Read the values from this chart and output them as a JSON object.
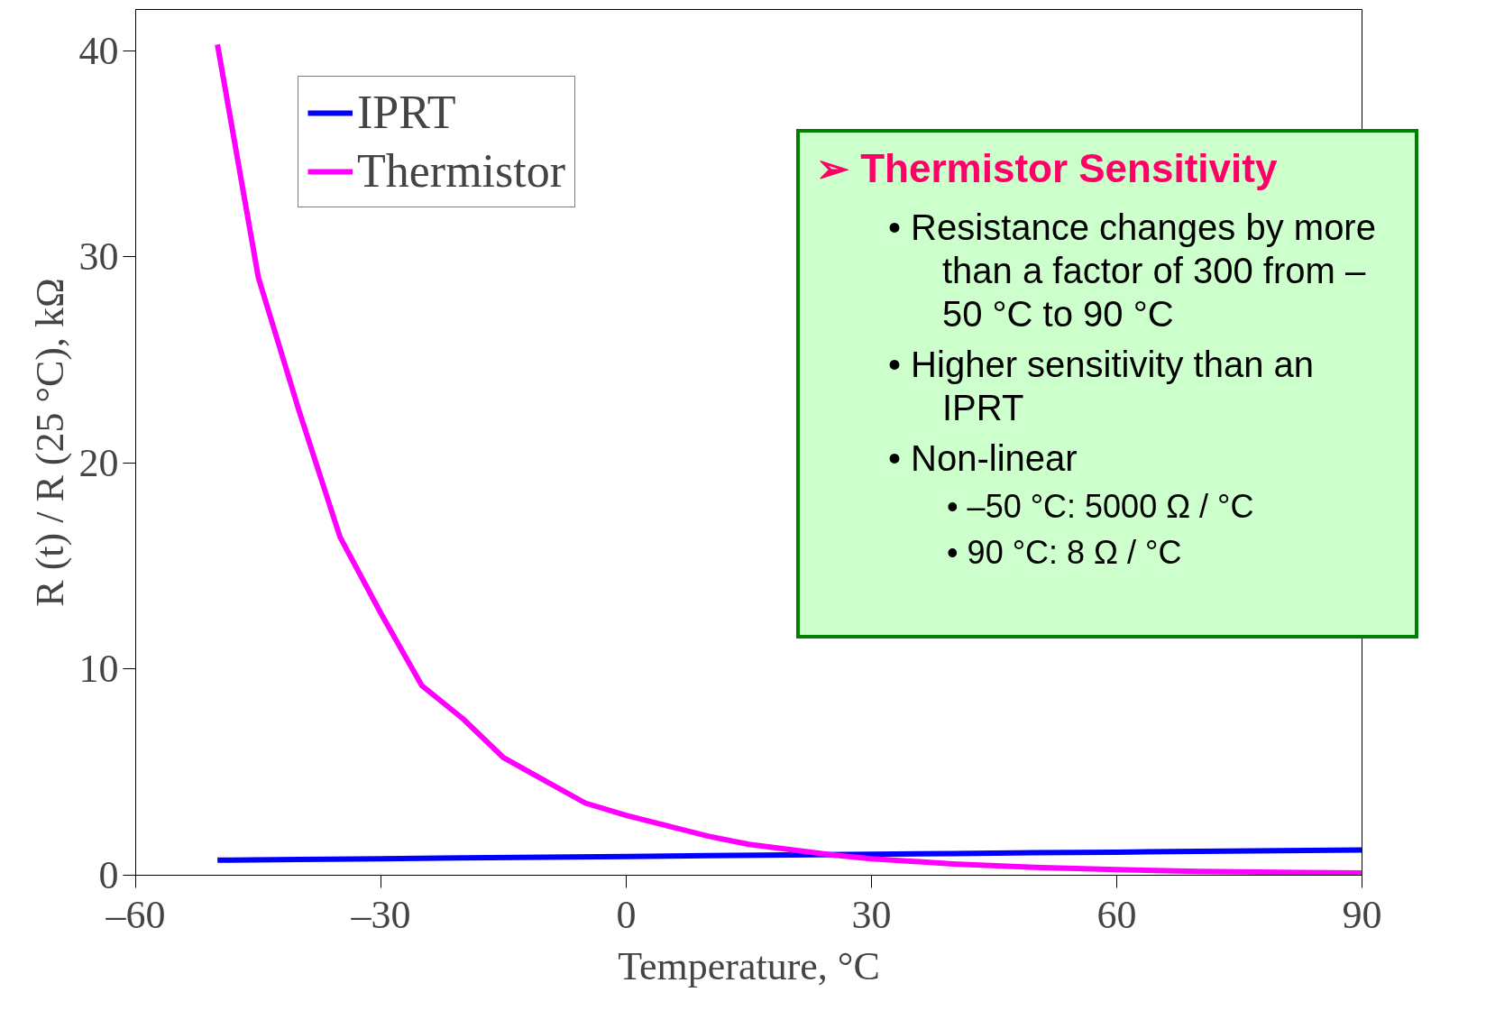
{
  "chart_data": {
    "type": "line",
    "xlabel": "Temperature, °C",
    "ylabel": "R (t) / R (25 °C), kΩ",
    "xlim": [
      -60,
      90
    ],
    "xticks": [
      {
        "value": -60,
        "label": "–60"
      },
      {
        "value": -30,
        "label": "–30"
      },
      0,
      30,
      60,
      90
    ],
    "ylim": [
      0,
      42
    ],
    "yticks": [
      0,
      10,
      20,
      30,
      40
    ],
    "grid": false,
    "legend": "top left",
    "line_style": "solid",
    "marker": "none",
    "series": [
      {
        "name": "IPRT",
        "color": "#0000ff",
        "x": [
          -50,
          -40,
          -30,
          -20,
          -10,
          0,
          10,
          20,
          30,
          40,
          50,
          60,
          70,
          80,
          90
        ],
        "values": [
          0.73,
          0.77,
          0.8,
          0.84,
          0.87,
          0.91,
          0.95,
          0.98,
          1.02,
          1.05,
          1.09,
          1.12,
          1.16,
          1.19,
          1.23
        ]
      },
      {
        "name": "Thermistor",
        "color": "#ff00ff",
        "x": [
          -50,
          -45,
          -40,
          -35,
          -30,
          -25,
          -20,
          -15,
          -10,
          -5,
          0,
          5,
          10,
          15,
          20,
          25,
          30,
          40,
          50,
          60,
          70,
          80,
          90
        ],
        "values": [
          40.3,
          29,
          22.5,
          16.4,
          12.7,
          9.2,
          7.6,
          5.7,
          4.6,
          3.5,
          2.9,
          2.4,
          1.9,
          1.5,
          1.25,
          1.0,
          0.8,
          0.55,
          0.38,
          0.27,
          0.19,
          0.14,
          0.11
        ]
      }
    ],
    "annotations": [
      "➢ Thermistor Sensitivity",
      "• Resistance changes by more than a factor of 300 from –50 °C to 90 °C",
      "• Higher sensitivity than an IPRT",
      "• Non-linear",
      "• –50 °C: 5000 Ω / °C",
      "• 90 °C: 8 Ω / °C"
    ]
  }
}
